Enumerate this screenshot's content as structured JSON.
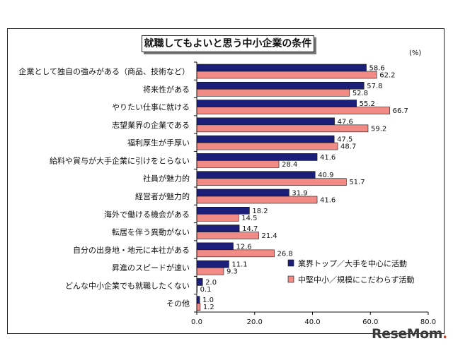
{
  "site": {
    "watermark_main": "ReseMom",
    "watermark_dot": "."
  },
  "chart_data": {
    "type": "bar",
    "orientation": "horizontal",
    "title": "就職してもよいと思う中小企業の条件",
    "unit": "(%)",
    "categories": [
      "企業として独自の強みがある（商品、技術など）",
      "将来性がある",
      "やりたい仕事に就ける",
      "志望業界の企業である",
      "福利厚生が手厚い",
      "給料や賞与が大手企業に引けをとらない",
      "社員が魅力的",
      "経営者が魅力的",
      "海外で働ける機会がある",
      "転居を伴う異動がない",
      "自分の出身地・地元に本社がある",
      "昇進のスピードが速い",
      "どんな中小企業でも就職したくない",
      "その他"
    ],
    "series": [
      {
        "name": "業界トップ／大手を中心に活動",
        "color": "#1b1f7a",
        "values": [
          58.6,
          57.8,
          55.2,
          47.6,
          47.5,
          41.6,
          40.9,
          31.9,
          18.2,
          14.7,
          12.6,
          11.1,
          2.0,
          1.0
        ]
      },
      {
        "name": "中堅中小／規模にこだわらず活動",
        "color": "#f28b86",
        "values": [
          62.2,
          52.8,
          66.7,
          59.2,
          48.7,
          28.4,
          51.7,
          41.6,
          14.5,
          21.4,
          26.8,
          9.3,
          0.1,
          1.2
        ]
      }
    ],
    "value_labels": [
      [
        "58.6",
        "57.8",
        "55.2",
        "47.6",
        "47.5",
        "41.6",
        "40.9",
        "31.9",
        "18.2",
        "14.7",
        "12.6",
        "11.1",
        "2.0",
        "1.0"
      ],
      [
        "62.2",
        "52.8",
        "66.7",
        "59.2",
        "48.7",
        "28.4",
        "51.7",
        "41.6",
        "14.5",
        "21.4",
        "26.8",
        "9.3",
        "0.1",
        "1.2"
      ]
    ],
    "xlim": [
      0,
      80
    ],
    "xticks": [
      0,
      20,
      40,
      60,
      80
    ],
    "xtick_labels": [
      "0.0",
      "20.0",
      "40.0",
      "60.0",
      "80.0"
    ],
    "grid": false,
    "legend_position": "bottom-right"
  }
}
